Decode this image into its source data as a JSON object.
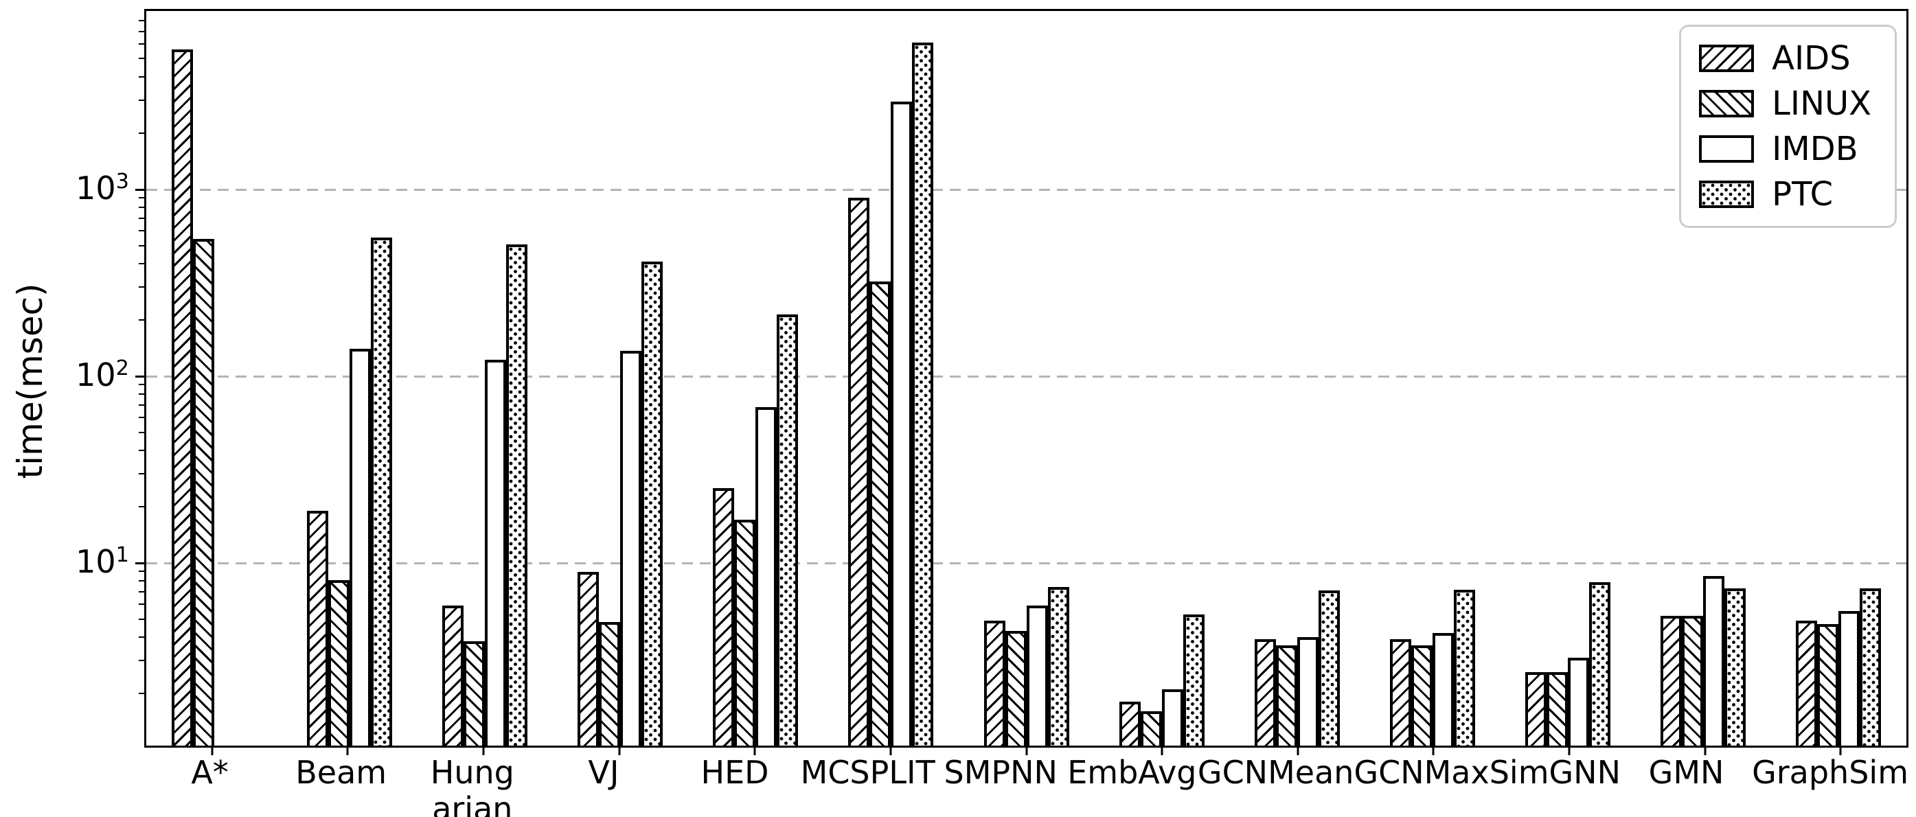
{
  "chart_data": {
    "type": "bar",
    "title": "",
    "xlabel": "",
    "ylabel": "time(msec)",
    "yscale": "log",
    "ylim": [
      1.05,
      9000
    ],
    "yticks": [
      10,
      100,
      1000
    ],
    "grid": "horizontal dashed gray at major yticks",
    "legend_position": "upper right",
    "bar_fill": "#ffffff",
    "bar_edge_color": "#000000",
    "gridline_color": "#b4b4b4",
    "categories": [
      "A*",
      "Beam",
      "Hung\narian",
      "VJ",
      "HED",
      "MCSPLIT",
      "SMPNN",
      "EmbAvg",
      "GCNMean",
      "GCNMax",
      "SimGNN",
      "GMN",
      "GraphSim"
    ],
    "series": [
      {
        "name": "AIDS",
        "hatch": "/",
        "values": [
          5600,
          19,
          5.9,
          8.9,
          25,
          900,
          4.9,
          1.8,
          3.9,
          3.9,
          2.6,
          5.2,
          4.9
        ]
      },
      {
        "name": "LINUX",
        "hatch": "\\",
        "values": [
          540,
          8.1,
          3.8,
          4.8,
          17,
          320,
          4.3,
          1.6,
          3.6,
          3.6,
          2.6,
          5.2,
          4.7
        ]
      },
      {
        "name": "IMDB",
        "hatch": "none",
        "values": [
          null,
          140,
          122,
          136,
          68,
          2950,
          5.9,
          2.1,
          4.0,
          4.2,
          3.1,
          8.5,
          5.5
        ]
      },
      {
        "name": "PTC",
        "hatch": "dots",
        "values": [
          null,
          550,
          505,
          410,
          214,
          6100,
          7.4,
          5.3,
          7.1,
          7.2,
          7.9,
          7.3,
          7.3
        ]
      }
    ]
  }
}
